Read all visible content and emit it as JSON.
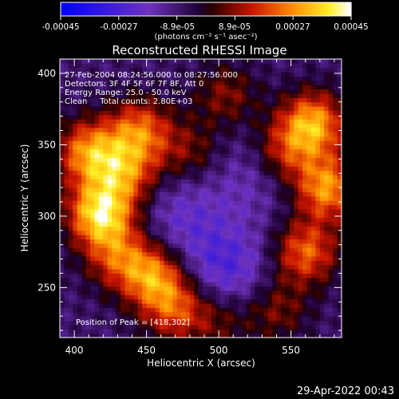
{
  "chart_data": {
    "type": "heatmap",
    "title": "Reconstructed RHESSI Image",
    "xlabel": "Heliocentric X (arcsec)",
    "ylabel": "Heliocentric Y (arcsec)",
    "xlim": [
      390,
      585
    ],
    "ylim": [
      215,
      410
    ],
    "xticks": [
      400,
      450,
      500,
      550
    ],
    "yticks": [
      250,
      300,
      350,
      400
    ],
    "annotations": [
      "27-Feb-2004 08:24:56.000 to 08:27:56.000",
      "Detectors: 3F 4F 5F 6F 7F 8F, Att 0",
      "Energy Range: 25.0 - 50.0 keV",
      "Clean     Total counts: 2.80E+03"
    ],
    "peak_label": "Position of Peak = [418,302]",
    "peak": [
      418,
      302
    ],
    "colorbar": {
      "tick_labels": [
        "-0.00045",
        "-0.00027",
        "-8.9e-05",
        "8.9e-05",
        "0.00027",
        "0.00045"
      ],
      "unit_label": "(photons cm⁻² s⁻¹ asec⁻²)",
      "range": [
        -0.00045,
        0.00045
      ]
    },
    "value_range": [
      -0.00045,
      0.00045
    ],
    "sources": [
      {
        "x": 418,
        "y": 302,
        "amplitude": 0.00045
      },
      {
        "x": 410,
        "y": 345,
        "amplitude": 0.00034
      },
      {
        "x": 445,
        "y": 360,
        "amplitude": 0.0003
      },
      {
        "x": 435,
        "y": 330,
        "amplitude": 0.00028
      },
      {
        "x": 455,
        "y": 258,
        "amplitude": 0.00033
      },
      {
        "x": 470,
        "y": 235,
        "amplitude": 0.00025
      },
      {
        "x": 430,
        "y": 272,
        "amplitude": 0.00024
      },
      {
        "x": 565,
        "y": 365,
        "amplitude": 0.00038
      },
      {
        "x": 575,
        "y": 320,
        "amplitude": 0.00036
      },
      {
        "x": 560,
        "y": 275,
        "amplitude": 0.0003
      },
      {
        "x": 545,
        "y": 345,
        "amplitude": 0.00022
      },
      {
        "x": 505,
        "y": 385,
        "amplitude": 0.00016
      },
      {
        "x": 480,
        "y": 345,
        "amplitude": 0.00015
      },
      {
        "x": 500,
        "y": 228,
        "amplitude": 0.00014
      },
      {
        "x": 540,
        "y": 235,
        "amplitude": 0.00016
      }
    ],
    "negative_regions": [
      {
        "x": 505,
        "y": 262,
        "amplitude": 0.00018
      },
      {
        "x": 475,
        "y": 300,
        "amplitude": 0.00012
      },
      {
        "x": 525,
        "y": 330,
        "amplitude": 0.0001
      }
    ]
  },
  "footer": {
    "timestamp": "29-Apr-2022 00:43"
  }
}
